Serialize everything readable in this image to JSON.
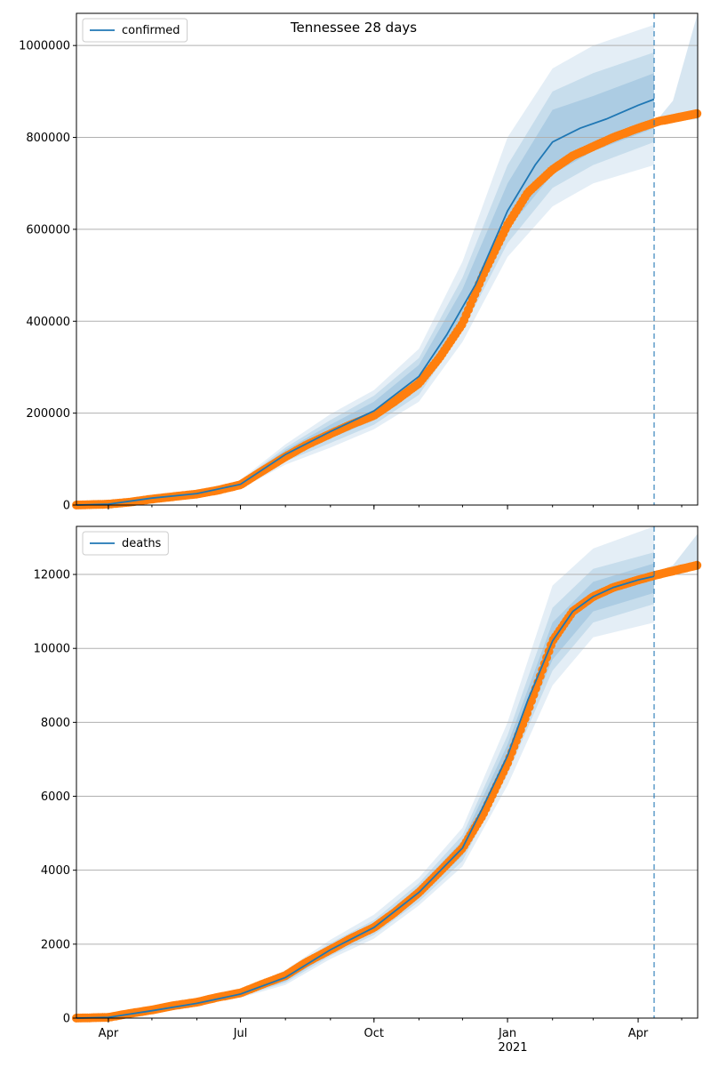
{
  "figure": {
    "title": "Tennessee 28 days"
  },
  "colors": {
    "model": "#1f77b4",
    "band": "#1f77b4",
    "observed": "#ff7f0e",
    "grid": "#b0b0b0",
    "vline": "#1f77b4"
  },
  "x_axis": {
    "ticks": [
      {
        "date": "2020-04-01",
        "label": "Apr"
      },
      {
        "date": "2020-07-01",
        "label": "Jul"
      },
      {
        "date": "2020-10-01",
        "label": "Oct"
      },
      {
        "date": "2021-01-01",
        "label": "Jan"
      },
      {
        "date": "2021-04-01",
        "label": "Apr"
      }
    ],
    "year_label": "2021",
    "range": [
      "2020-03-10",
      "2021-05-12"
    ],
    "forecast_start": "2021-04-12"
  },
  "chart_data": [
    {
      "type": "line",
      "legend": "confirmed",
      "legend_position": "top-left",
      "grid": "horizontal",
      "ylim": [
        0,
        1070000
      ],
      "yticks": [
        0,
        200000,
        400000,
        600000,
        800000,
        1000000
      ],
      "model": {
        "x": [
          "2020-03-10",
          "2020-04-01",
          "2020-05-01",
          "2020-06-01",
          "2020-07-01",
          "2020-08-01",
          "2020-09-01",
          "2020-10-01",
          "2020-11-01",
          "2020-11-20",
          "2020-12-10",
          "2021-01-01",
          "2021-01-20",
          "2021-02-01",
          "2021-02-20",
          "2021-03-10",
          "2021-04-01",
          "2021-04-12"
        ],
        "y": [
          0,
          2000,
          15000,
          25000,
          45000,
          110000,
          160000,
          205000,
          280000,
          370000,
          480000,
          640000,
          740000,
          790000,
          820000,
          840000,
          870000,
          883000
        ]
      },
      "bands": [
        {
          "level": "inner",
          "x": [
            "2020-07-01",
            "2020-08-01",
            "2020-09-01",
            "2020-10-01",
            "2020-11-01",
            "2020-12-01",
            "2021-01-01",
            "2021-02-01",
            "2021-03-01",
            "2021-04-12"
          ],
          "lower": [
            40000,
            100000,
            145000,
            185000,
            255000,
            400000,
            600000,
            720000,
            770000,
            820000
          ],
          "upper": [
            50000,
            120000,
            175000,
            225000,
            305000,
            470000,
            700000,
            860000,
            890000,
            940000
          ]
        },
        {
          "level": "middle",
          "x": [
            "2020-07-01",
            "2020-08-01",
            "2020-09-01",
            "2020-10-01",
            "2020-11-01",
            "2020-12-01",
            "2021-01-01",
            "2021-02-01",
            "2021-03-01",
            "2021-04-12"
          ],
          "lower": [
            38000,
            95000,
            135000,
            175000,
            240000,
            380000,
            570000,
            690000,
            740000,
            790000
          ],
          "upper": [
            52000,
            125000,
            185000,
            238000,
            320000,
            495000,
            740000,
            900000,
            940000,
            985000
          ]
        },
        {
          "level": "outer",
          "x": [
            "2020-07-01",
            "2020-08-01",
            "2020-09-01",
            "2020-10-01",
            "2020-11-01",
            "2020-12-01",
            "2021-01-01",
            "2021-02-01",
            "2021-03-01",
            "2021-04-12"
          ],
          "lower": [
            35000,
            88000,
            125000,
            165000,
            225000,
            355000,
            540000,
            650000,
            700000,
            740000
          ],
          "upper": [
            55000,
            132000,
            198000,
            250000,
            340000,
            530000,
            800000,
            950000,
            1000000,
            1045000
          ]
        }
      ],
      "after_bands": {
        "x": [
          "2021-04-12",
          "2021-04-25",
          "2021-05-12"
        ],
        "lower": [
          825000,
          835000,
          840000
        ],
        "upper": [
          830000,
          880000,
          1070000
        ]
      },
      "observed": {
        "x": [
          "2020-03-10",
          "2020-04-01",
          "2020-04-15",
          "2020-05-01",
          "2020-05-15",
          "2020-06-01",
          "2020-06-15",
          "2020-07-01",
          "2020-07-15",
          "2020-08-01",
          "2020-08-15",
          "2020-09-01",
          "2020-09-15",
          "2020-10-01",
          "2020-10-15",
          "2020-11-01",
          "2020-11-15",
          "2020-12-01",
          "2020-12-15",
          "2021-01-01",
          "2021-01-15",
          "2021-02-01",
          "2021-02-15",
          "2021-03-01",
          "2021-03-15",
          "2021-04-01",
          "2021-04-15",
          "2021-05-01",
          "2021-05-12"
        ],
        "y": [
          0,
          2000,
          6000,
          13000,
          18000,
          24000,
          32000,
          44000,
          72000,
          105000,
          130000,
          155000,
          175000,
          195000,
          225000,
          265000,
          320000,
          395000,
          500000,
          610000,
          680000,
          730000,
          760000,
          780000,
          800000,
          820000,
          835000,
          845000,
          852000
        ]
      }
    },
    {
      "type": "line",
      "legend": "deaths",
      "legend_position": "top-left",
      "grid": "horizontal",
      "ylim": [
        0,
        13300
      ],
      "yticks": [
        0,
        2000,
        4000,
        6000,
        8000,
        10000,
        12000
      ],
      "model": {
        "x": [
          "2020-03-10",
          "2020-04-01",
          "2020-05-01",
          "2020-06-01",
          "2020-07-01",
          "2020-08-01",
          "2020-09-01",
          "2020-10-01",
          "2020-11-01",
          "2020-12-01",
          "2020-12-15",
          "2021-01-01",
          "2021-01-15",
          "2021-02-01",
          "2021-02-15",
          "2021-03-01",
          "2021-03-15",
          "2021-04-01",
          "2021-04-12"
        ],
        "y": [
          0,
          20,
          200,
          400,
          650,
          1100,
          1850,
          2450,
          3400,
          4600,
          5700,
          7100,
          8600,
          10200,
          11000,
          11400,
          11650,
          11850,
          11950
        ]
      },
      "bands": [
        {
          "level": "inner",
          "x": [
            "2020-07-01",
            "2020-08-01",
            "2020-09-01",
            "2020-10-01",
            "2020-11-01",
            "2020-12-01",
            "2021-01-01",
            "2021-02-01",
            "2021-03-01",
            "2021-04-12"
          ],
          "lower": [
            600,
            1000,
            1750,
            2350,
            3250,
            4400,
            6800,
            9700,
            11000,
            11500
          ],
          "upper": [
            700,
            1200,
            1950,
            2550,
            3550,
            4800,
            7400,
            10700,
            11800,
            12300
          ]
        },
        {
          "level": "middle",
          "x": [
            "2020-07-01",
            "2020-08-01",
            "2020-09-01",
            "2020-10-01",
            "2020-11-01",
            "2020-12-01",
            "2021-01-01",
            "2021-02-01",
            "2021-03-01",
            "2021-04-12"
          ],
          "lower": [
            580,
            960,
            1680,
            2250,
            3150,
            4250,
            6600,
            9400,
            10700,
            11200
          ],
          "upper": [
            720,
            1250,
            2030,
            2650,
            3650,
            4950,
            7650,
            11100,
            12150,
            12600
          ]
        },
        {
          "level": "outer",
          "x": [
            "2020-07-01",
            "2020-08-01",
            "2020-09-01",
            "2020-10-01",
            "2020-11-01",
            "2020-12-01",
            "2021-01-01",
            "2021-02-01",
            "2021-03-01",
            "2021-04-12"
          ],
          "lower": [
            550,
            900,
            1600,
            2150,
            3050,
            4100,
            6300,
            9000,
            10300,
            10700
          ],
          "upper": [
            750,
            1300,
            2120,
            2800,
            3800,
            5150,
            8000,
            11700,
            12700,
            13300
          ]
        }
      ],
      "after_bands": {
        "x": [
          "2021-04-12",
          "2021-04-25",
          "2021-05-12"
        ],
        "lower": [
          11950,
          12050,
          12150
        ],
        "upper": [
          12050,
          12250,
          13100
        ]
      },
      "observed": {
        "x": [
          "2020-03-10",
          "2020-04-01",
          "2020-04-15",
          "2020-05-01",
          "2020-05-15",
          "2020-06-01",
          "2020-06-15",
          "2020-07-01",
          "2020-07-15",
          "2020-08-01",
          "2020-08-15",
          "2020-09-01",
          "2020-09-15",
          "2020-10-01",
          "2020-10-15",
          "2020-11-01",
          "2020-11-15",
          "2020-12-01",
          "2020-12-15",
          "2021-01-01",
          "2021-01-15",
          "2021-02-01",
          "2021-02-15",
          "2021-03-01",
          "2021-03-15",
          "2021-04-01",
          "2021-04-15",
          "2021-05-01",
          "2021-05-12"
        ],
        "y": [
          0,
          20,
          120,
          220,
          330,
          430,
          560,
          680,
          900,
          1150,
          1500,
          1850,
          2150,
          2450,
          2850,
          3400,
          3950,
          4600,
          5500,
          6900,
          8300,
          10200,
          11000,
          11400,
          11650,
          11850,
          12000,
          12150,
          12250
        ]
      }
    }
  ]
}
